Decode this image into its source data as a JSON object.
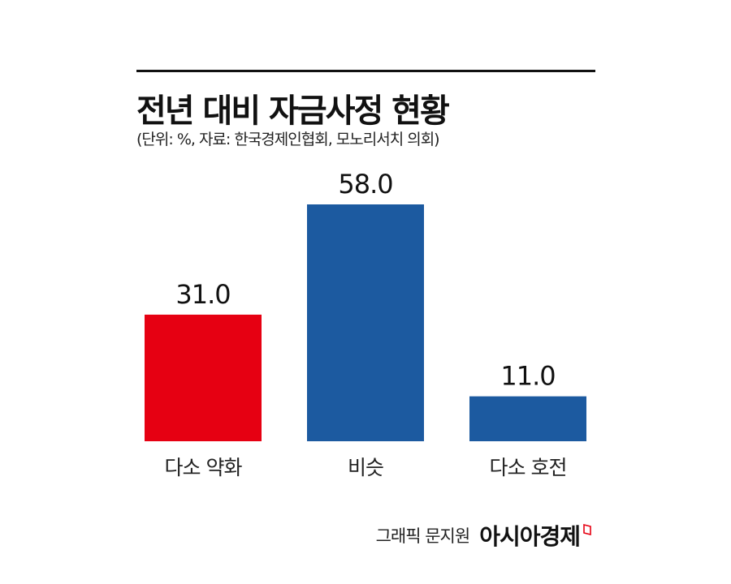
{
  "header": {
    "title": "전년 대비 자금사정 현황",
    "subtitle": "(단위: %, 자료: 한국경제인협회, 모노리서치 의회)"
  },
  "credit": {
    "text": "그래픽 문지원",
    "brand": "아시아경제"
  },
  "colors": {
    "negative": "#e60012",
    "neutral": "#1c5aa0",
    "text": "#111111"
  },
  "chart_data": {
    "type": "bar",
    "title": "전년 대비 자금사정 현황",
    "categories": [
      "다소 약화",
      "비슷",
      "다소 호전"
    ],
    "values": [
      31.0,
      58.0,
      11.0
    ],
    "value_labels": [
      "31.0",
      "58.0",
      "11.0"
    ],
    "bar_colors": [
      "#e60012",
      "#1c5aa0",
      "#1c5aa0"
    ],
    "unit": "%",
    "ylim": [
      0,
      58
    ],
    "grid": false,
    "legend": "none"
  }
}
